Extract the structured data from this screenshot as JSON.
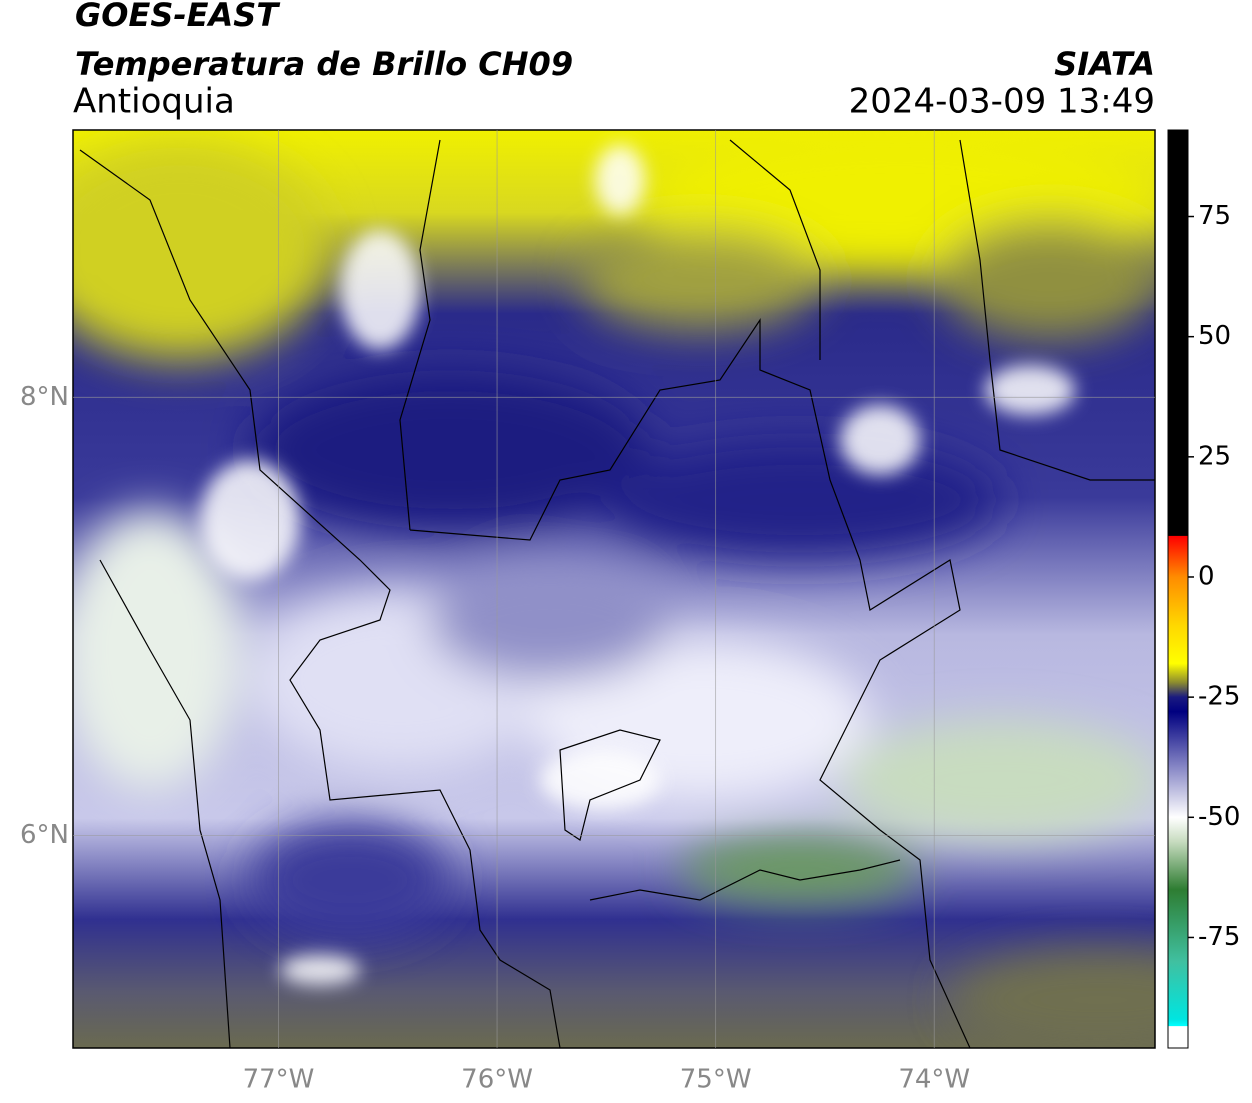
{
  "header": {
    "title": "GOES-EAST",
    "subtitle": "Temperatura de Brillo CH09",
    "region": "Antioquia",
    "source": "SIATA",
    "datetime": "2024-03-09 13:49"
  },
  "map": {
    "xlim": [
      -77.94,
      -72.99
    ],
    "ylim": [
      5.03,
      9.22
    ],
    "xticks": [
      {
        "value": -77,
        "label": "77°W"
      },
      {
        "value": -76,
        "label": "76°W"
      },
      {
        "value": -75,
        "label": "75°W"
      },
      {
        "value": -74,
        "label": "74°W"
      }
    ],
    "yticks": [
      {
        "value": 8,
        "label": "8°N"
      },
      {
        "value": 6,
        "label": "6°N"
      }
    ],
    "grid": true
  },
  "colorbar": {
    "range": [
      -98,
      93
    ],
    "ticks": [
      75,
      50,
      25,
      0,
      -25,
      -50,
      -75
    ],
    "stops": [
      {
        "value": 93,
        "color": "#000000"
      },
      {
        "value": 8.6,
        "color": "#000000"
      },
      {
        "value": 8.5,
        "color": "#ff0000"
      },
      {
        "value": 0,
        "color": "#ff8c00"
      },
      {
        "value": -10,
        "color": "#ffd700"
      },
      {
        "value": -18,
        "color": "#ffff00"
      },
      {
        "value": -22,
        "color": "#8a8a30"
      },
      {
        "value": -25,
        "color": "#1a1a80"
      },
      {
        "value": -28,
        "color": "#000080"
      },
      {
        "value": -40,
        "color": "#8c8cc8"
      },
      {
        "value": -50,
        "color": "#ffffff"
      },
      {
        "value": -55,
        "color": "#c8dcc0"
      },
      {
        "value": -65,
        "color": "#2e7d32"
      },
      {
        "value": -80,
        "color": "#40c0a0"
      },
      {
        "value": -92,
        "color": "#00e5e0"
      },
      {
        "value": -93.4,
        "color": "#00ffff"
      },
      {
        "value": -93.5,
        "color": "#ffffff"
      },
      {
        "value": -98,
        "color": "#ffffff"
      }
    ]
  }
}
